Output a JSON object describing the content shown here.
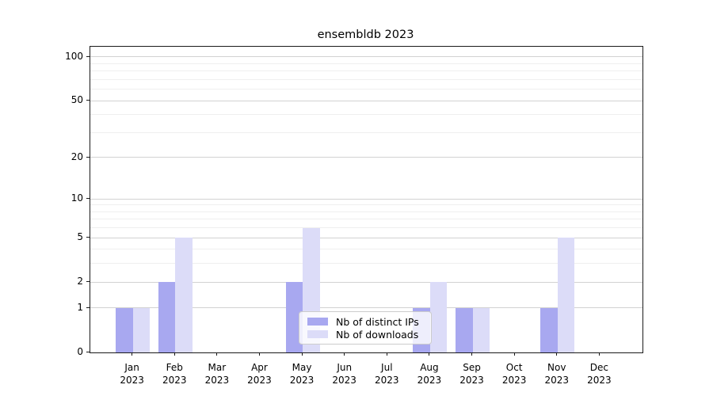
{
  "chart_data": {
    "type": "bar",
    "title": "ensembldb 2023",
    "categories": [
      "Jan\n2023",
      "Feb\n2023",
      "Mar\n2023",
      "Apr\n2023",
      "May\n2023",
      "Jun\n2023",
      "Jul\n2023",
      "Aug\n2023",
      "Sep\n2023",
      "Oct\n2023",
      "Nov\n2023",
      "Dec\n2023"
    ],
    "series": [
      {
        "name": "Nb of distinct IPs",
        "color": "#a8a8f0",
        "values": [
          1,
          2,
          0,
          0,
          2,
          0,
          0,
          1,
          1,
          0,
          1,
          0
        ]
      },
      {
        "name": "Nb of downloads",
        "color": "#dcdcf8",
        "values": [
          1,
          5,
          0,
          0,
          6,
          0,
          0,
          2,
          1,
          0,
          5,
          0
        ]
      }
    ],
    "yscale": "log1p",
    "ylim": [
      0,
      118
    ],
    "y_major_ticks": [
      0,
      1,
      2,
      5,
      10,
      20,
      50,
      100
    ],
    "y_minor_gridlines": [
      3,
      4,
      6,
      7,
      8,
      9,
      30,
      40,
      60,
      70,
      80,
      90
    ],
    "grid": "horizontal",
    "legend_position": "lower center",
    "bar_width_fraction": 0.4
  },
  "colors": {
    "spine": "#1a1a1a",
    "grid_major": "#d2d2d2",
    "grid_minor": "#efefef",
    "background": "#ffffff",
    "text": "#000000"
  }
}
